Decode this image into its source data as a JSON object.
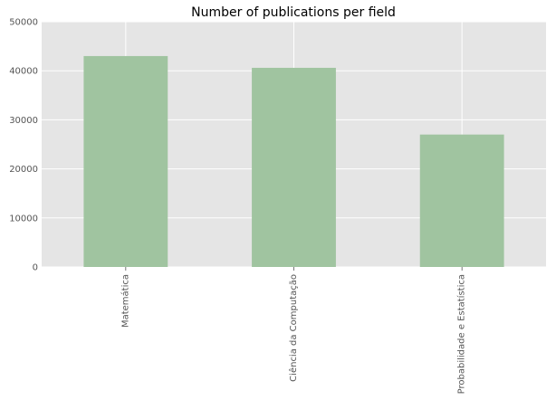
{
  "chart_data": {
    "type": "bar",
    "title": "Number of publications per field",
    "xlabel": "",
    "ylabel": "",
    "categories": [
      "Matemática",
      "Ciência da Computação",
      "Probabilidade e Estatística"
    ],
    "values": [
      43000,
      40600,
      27000
    ],
    "ylim": [
      0,
      50000
    ],
    "yticks": [
      0,
      10000,
      20000,
      30000,
      40000,
      50000
    ],
    "ytick_labels": [
      "0",
      "10000",
      "20000",
      "30000",
      "40000",
      "50000"
    ],
    "grid": true,
    "legend": "none",
    "colors": {
      "plot_background": "#e5e5e5",
      "grid": "#ffffff",
      "bar": "#a0c4a0",
      "tick_label": "#555555",
      "title": "#000000"
    }
  }
}
